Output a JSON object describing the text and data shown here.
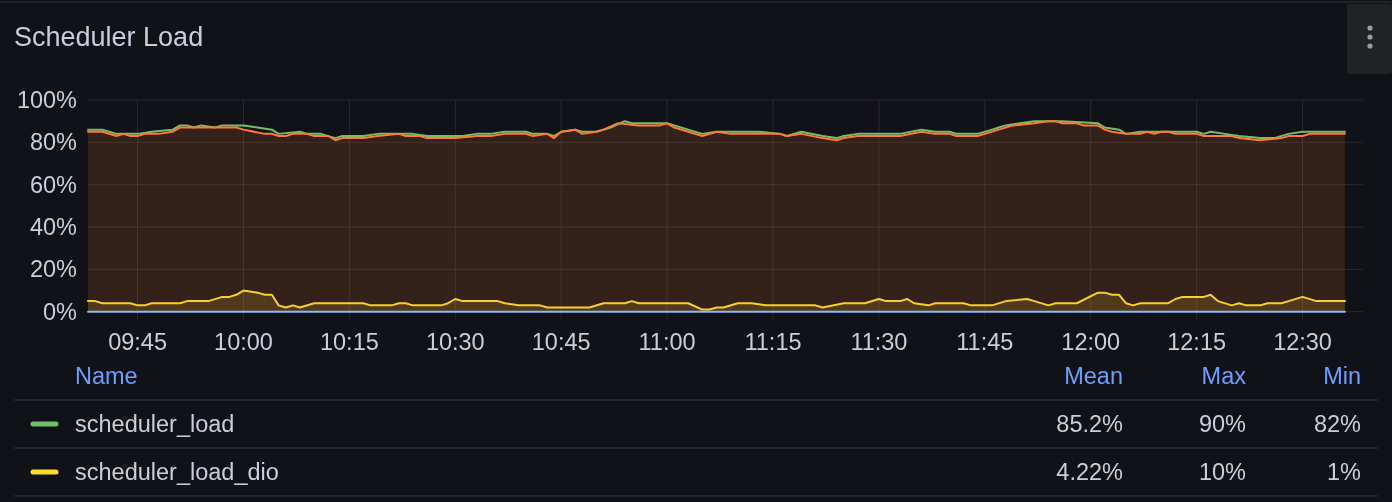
{
  "chart_data": {
    "type": "area",
    "title": "Scheduler Load",
    "xlim": [
      9.633,
      12.642
    ],
    "xticks": [
      {
        "value": 9.75,
        "label": "09:45"
      },
      {
        "value": 10,
        "label": "10:00"
      },
      {
        "value": 10.25,
        "label": "10:15"
      },
      {
        "value": 10.5,
        "label": "10:30"
      },
      {
        "value": 10.75,
        "label": "10:45"
      },
      {
        "value": 11,
        "label": "11:00"
      },
      {
        "value": 11.25,
        "label": "11:15"
      },
      {
        "value": 11.5,
        "label": "11:30"
      },
      {
        "value": 11.75,
        "label": "11:45"
      },
      {
        "value": 12,
        "label": "12:00"
      },
      {
        "value": 12.25,
        "label": "12:15"
      },
      {
        "value": 12.5,
        "label": "12:30"
      }
    ],
    "ylim": [
      0,
      100
    ],
    "yticks": [
      {
        "value": 0,
        "label": "0%"
      },
      {
        "value": 20,
        "label": "20%"
      },
      {
        "value": 40,
        "label": "40%"
      },
      {
        "value": 60,
        "label": "60%"
      },
      {
        "value": 80,
        "label": "80%"
      },
      {
        "value": 100,
        "label": "100%"
      }
    ],
    "grid": true,
    "legend": "bottom",
    "legend_title": "Name",
    "annotations": [
      "Mean",
      "Max",
      "Min",
      "85.2%",
      "90%",
      "82%",
      "4.22%",
      "10%",
      "1%"
    ],
    "series": [
      {
        "type": "line",
        "name": "scheduler_load",
        "color": "#73bf69",
        "x": [
          9.633,
          9.667,
          9.7,
          9.75,
          9.783,
          9.833,
          9.85,
          9.867,
          9.883,
          9.9,
          9.933,
          9.95,
          10,
          10.033,
          10.067,
          10.083,
          10.133,
          10.15,
          10.183,
          10.217,
          10.233,
          10.283,
          10.317,
          10.4,
          10.433,
          10.467,
          10.517,
          10.55,
          10.583,
          10.617,
          10.667,
          10.683,
          10.717,
          10.733,
          10.75,
          10.783,
          10.8,
          10.833,
          10.867,
          10.9,
          10.917,
          11,
          11.017,
          11.05,
          11.083,
          11.117,
          11.217,
          11.267,
          11.283,
          11.317,
          11.367,
          11.4,
          11.417,
          11.45,
          11.55,
          11.6,
          11.633,
          11.667,
          11.683,
          11.733,
          11.767,
          11.783,
          11.8,
          11.833,
          11.867,
          11.933,
          12.017,
          12.033,
          12.067,
          12.083,
          12.117,
          12.15,
          12.25,
          12.267,
          12.283,
          12.317,
          12.35,
          12.4,
          12.433,
          12.467,
          12.5,
          12.6
        ],
        "values": [
          86,
          86,
          84,
          84,
          85,
          86,
          88,
          88,
          87,
          88,
          87,
          88,
          88,
          87,
          86,
          84,
          85,
          84,
          84,
          82,
          83,
          83,
          84,
          84,
          83,
          83,
          83,
          84,
          84,
          85,
          85,
          84,
          84,
          83,
          85,
          86,
          85,
          85,
          87,
          90,
          89,
          89,
          88,
          86,
          84,
          85,
          85,
          84,
          83,
          85,
          83,
          82,
          83,
          84,
          84,
          86,
          85,
          85,
          84,
          84,
          86,
          87,
          88,
          89,
          90,
          90,
          89,
          87,
          86,
          84,
          85,
          85,
          85,
          84,
          85,
          84,
          83,
          82,
          82,
          84,
          85,
          85
        ]
      },
      {
        "name": "scheduler_load_dio",
        "color": "#fade2a",
        "x": [
          9.633,
          9.65,
          9.667,
          9.733,
          9.75,
          9.767,
          9.783,
          9.85,
          9.867,
          9.917,
          9.95,
          9.967,
          9.983,
          10,
          10.033,
          10.05,
          10.067,
          10.083,
          10.1,
          10.117,
          10.133,
          10.167,
          10.283,
          10.3,
          10.35,
          10.367,
          10.383,
          10.4,
          10.467,
          10.483,
          10.5,
          10.517,
          10.55,
          10.6,
          10.617,
          10.65,
          10.7,
          10.717,
          10.817,
          10.85,
          10.9,
          10.917,
          10.933,
          11.05,
          11.083,
          11.1,
          11.117,
          11.133,
          11.167,
          11.2,
          11.233,
          11.35,
          11.367,
          11.417,
          11.467,
          11.5,
          11.517,
          11.55,
          11.567,
          11.583,
          11.617,
          11.633,
          11.7,
          11.717,
          11.767,
          11.8,
          11.85,
          11.867,
          11.9,
          11.917,
          11.967,
          12.017,
          12.033,
          12.05,
          12.067,
          12.083,
          12.1,
          12.117,
          12.183,
          12.2,
          12.217,
          12.267,
          12.283,
          12.3,
          12.333,
          12.35,
          12.367,
          12.4,
          12.417,
          12.45,
          12.467,
          12.5,
          12.533,
          12.6
        ],
        "values": [
          5,
          5,
          4,
          4,
          3,
          3,
          4,
          4,
          5,
          5,
          7,
          7,
          8,
          10,
          9,
          8,
          8,
          3,
          2,
          3,
          2,
          4,
          4,
          3,
          3,
          4,
          4,
          3,
          3,
          4,
          6,
          5,
          5,
          5,
          4,
          3,
          3,
          2,
          2,
          4,
          4,
          5,
          4,
          4,
          1,
          1,
          2,
          2,
          4,
          4,
          3,
          3,
          2,
          4,
          4,
          6,
          5,
          5,
          6,
          4,
          3,
          4,
          4,
          3,
          3,
          5,
          6,
          5,
          3,
          4,
          4,
          9,
          9,
          8,
          8,
          4,
          3,
          4,
          4,
          6,
          7,
          7,
          8,
          5,
          3,
          4,
          3,
          3,
          4,
          4,
          5,
          7,
          5,
          5
        ]
      },
      {
        "color": "#ff7b2e",
        "x": [
          9.633,
          9.667,
          9.7,
          9.717,
          9.733,
          9.75,
          9.767,
          9.8,
          9.833,
          9.85,
          9.983,
          10,
          10.05,
          10.067,
          10.083,
          10.1,
          10.117,
          10.15,
          10.167,
          10.2,
          10.217,
          10.233,
          10.283,
          10.317,
          10.367,
          10.383,
          10.417,
          10.433,
          10.5,
          10.55,
          10.583,
          10.617,
          10.667,
          10.683,
          10.717,
          10.733,
          10.75,
          10.783,
          10.8,
          10.833,
          10.85,
          10.883,
          10.933,
          10.983,
          11,
          11.017,
          11.05,
          11.083,
          11.117,
          11.15,
          11.267,
          11.283,
          11.317,
          11.367,
          11.4,
          11.417,
          11.45,
          11.55,
          11.6,
          11.633,
          11.667,
          11.683,
          11.733,
          11.783,
          11.817,
          11.867,
          11.9,
          11.917,
          11.933,
          11.967,
          11.983,
          12.017,
          12.033,
          12.05,
          12.083,
          12.117,
          12.133,
          12.15,
          12.167,
          12.183,
          12.2,
          12.25,
          12.267,
          12.333,
          12.35,
          12.4,
          12.45,
          12.467,
          12.5,
          12.517,
          12.6
        ],
        "values": [
          85,
          85,
          83,
          84,
          83,
          83,
          84,
          84,
          85,
          87,
          87,
          86,
          84,
          84,
          83,
          83,
          84,
          84,
          83,
          83,
          81,
          82,
          82,
          83,
          84,
          83,
          83,
          82,
          82,
          83,
          83,
          84,
          84,
          83,
          84,
          82,
          85,
          86,
          84,
          85,
          86,
          89,
          88,
          88,
          89,
          87,
          85,
          83,
          85,
          84,
          84,
          83,
          84,
          82,
          81,
          82,
          83,
          83,
          85,
          84,
          84,
          83,
          83,
          86,
          88,
          89,
          90,
          90,
          89,
          89,
          88,
          88,
          86,
          85,
          84,
          84,
          85,
          84,
          85,
          85,
          84,
          84,
          83,
          83,
          82,
          81,
          82,
          83,
          83,
          84,
          84
        ]
      },
      {
        "type": "line",
        "color": "#8ab8ff",
        "x": [
          9.633,
          12.6
        ],
        "values": [
          0,
          0
        ]
      }
    ]
  }
}
